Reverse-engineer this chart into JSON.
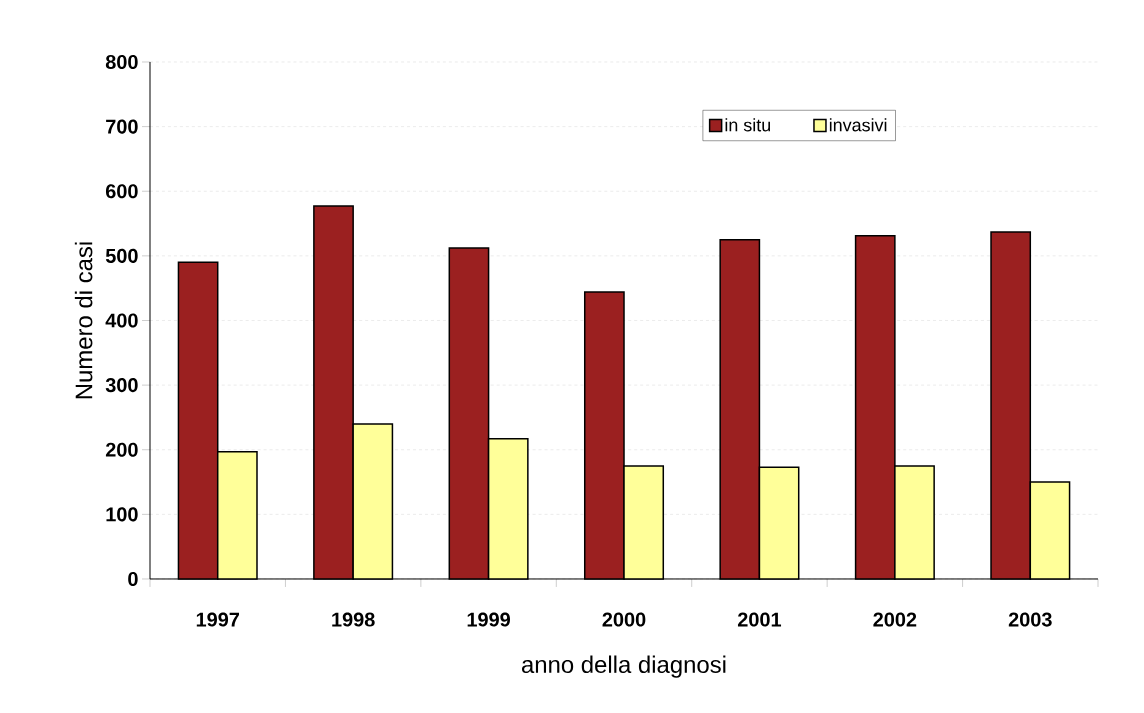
{
  "chart_data": {
    "type": "bar",
    "categories": [
      "1997",
      "1998",
      "1999",
      "2000",
      "2001",
      "2002",
      "2003"
    ],
    "xlabel": "anno della diagnosi",
    "ylabel": "Numero di casi",
    "series": [
      {
        "name": "in situ",
        "color": "#9b2020",
        "values": [
          490,
          577,
          512,
          444,
          525,
          531,
          537
        ]
      },
      {
        "name": "invasivi",
        "color": "#ffff99",
        "values": [
          197,
          240,
          217,
          175,
          173,
          175,
          150
        ]
      }
    ],
    "ylim": [
      0,
      800
    ],
    "yticks": [
      0,
      100,
      200,
      300,
      400,
      500,
      600,
      700,
      800
    ],
    "grid": "y",
    "legend": "top right"
  }
}
